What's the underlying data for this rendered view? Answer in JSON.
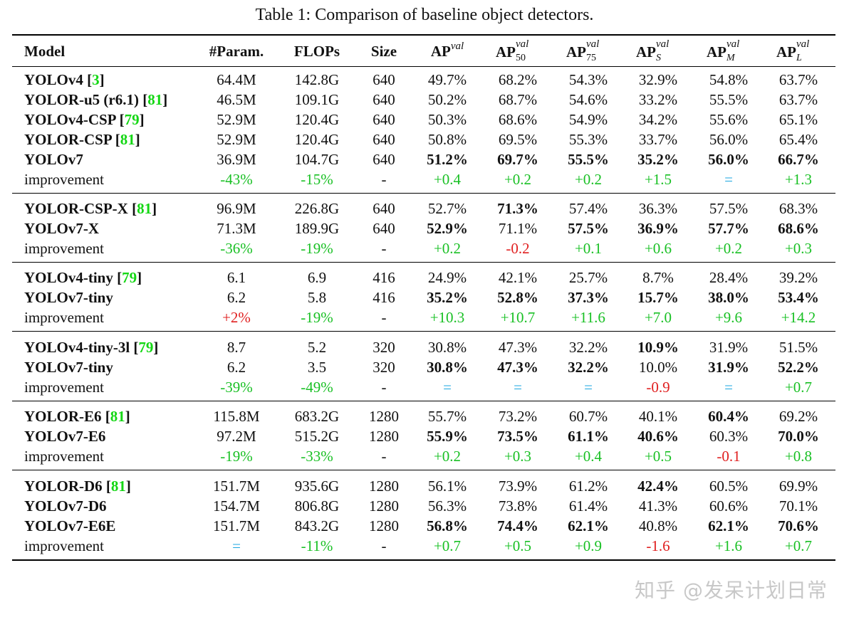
{
  "caption": "Table 1: Comparison of baseline object detectors.",
  "headers": {
    "model": "Model",
    "params": "#Param.",
    "flops": "FLOPs",
    "size": "Size",
    "ap": "AP",
    "ap_sup": "val",
    "ap50_sub": "50",
    "ap75_sub": "75",
    "aps_sub": "S",
    "apm_sub": "M",
    "apl_sub": "L"
  },
  "groups": [
    {
      "rows": [
        {
          "model": "YOLOv4",
          "ref": "3",
          "cells": [
            [
              "64.4M",
              ""
            ],
            [
              "142.8G",
              ""
            ],
            [
              "640",
              ""
            ],
            [
              "49.7%",
              ""
            ],
            [
              "68.2%",
              ""
            ],
            [
              "54.3%",
              ""
            ],
            [
              "32.9%",
              ""
            ],
            [
              "54.8%",
              ""
            ],
            [
              "63.7%",
              ""
            ]
          ]
        },
        {
          "model": "YOLOR-u5 (r6.1)",
          "ref": "81",
          "cells": [
            [
              "46.5M",
              ""
            ],
            [
              "109.1G",
              ""
            ],
            [
              "640",
              ""
            ],
            [
              "50.2%",
              ""
            ],
            [
              "68.7%",
              ""
            ],
            [
              "54.6%",
              ""
            ],
            [
              "33.2%",
              ""
            ],
            [
              "55.5%",
              ""
            ],
            [
              "63.7%",
              ""
            ]
          ]
        },
        {
          "model": "YOLOv4-CSP",
          "ref": "79",
          "cells": [
            [
              "52.9M",
              ""
            ],
            [
              "120.4G",
              ""
            ],
            [
              "640",
              ""
            ],
            [
              "50.3%",
              ""
            ],
            [
              "68.6%",
              ""
            ],
            [
              "54.9%",
              ""
            ],
            [
              "34.2%",
              ""
            ],
            [
              "55.6%",
              ""
            ],
            [
              "65.1%",
              ""
            ]
          ]
        },
        {
          "model": "YOLOR-CSP",
          "ref": "81",
          "cells": [
            [
              "52.9M",
              ""
            ],
            [
              "120.4G",
              ""
            ],
            [
              "640",
              ""
            ],
            [
              "50.8%",
              ""
            ],
            [
              "69.5%",
              ""
            ],
            [
              "55.3%",
              ""
            ],
            [
              "33.7%",
              ""
            ],
            [
              "56.0%",
              ""
            ],
            [
              "65.4%",
              ""
            ]
          ]
        },
        {
          "model": "YOLOv7",
          "ref": "",
          "cells": [
            [
              "36.9M",
              ""
            ],
            [
              "104.7G",
              ""
            ],
            [
              "640",
              ""
            ],
            [
              "51.2%",
              "b"
            ],
            [
              "69.7%",
              "b"
            ],
            [
              "55.5%",
              "b"
            ],
            [
              "35.2%",
              "b"
            ],
            [
              "56.0%",
              "b"
            ],
            [
              "66.7%",
              "b"
            ]
          ]
        },
        {
          "model": "improvement",
          "plain": true,
          "cells": [
            [
              "-43%",
              "green"
            ],
            [
              "-15%",
              "green"
            ],
            [
              "-",
              ""
            ],
            [
              "+0.4",
              "green"
            ],
            [
              "+0.2",
              "green"
            ],
            [
              "+0.2",
              "green"
            ],
            [
              "+1.5",
              "green"
            ],
            [
              "=",
              "cyan"
            ],
            [
              "+1.3",
              "green"
            ]
          ]
        }
      ]
    },
    {
      "rows": [
        {
          "model": "YOLOR-CSP-X",
          "ref": "81",
          "cells": [
            [
              "96.9M",
              ""
            ],
            [
              "226.8G",
              ""
            ],
            [
              "640",
              ""
            ],
            [
              "52.7%",
              ""
            ],
            [
              "71.3%",
              "b"
            ],
            [
              "57.4%",
              ""
            ],
            [
              "36.3%",
              ""
            ],
            [
              "57.5%",
              ""
            ],
            [
              "68.3%",
              ""
            ]
          ]
        },
        {
          "model": "YOLOv7-X",
          "ref": "",
          "cells": [
            [
              "71.3M",
              ""
            ],
            [
              "189.9G",
              ""
            ],
            [
              "640",
              ""
            ],
            [
              "52.9%",
              "b"
            ],
            [
              "71.1%",
              ""
            ],
            [
              "57.5%",
              "b"
            ],
            [
              "36.9%",
              "b"
            ],
            [
              "57.7%",
              "b"
            ],
            [
              "68.6%",
              "b"
            ]
          ]
        },
        {
          "model": "improvement",
          "plain": true,
          "cells": [
            [
              "-36%",
              "green"
            ],
            [
              "-19%",
              "green"
            ],
            [
              "-",
              ""
            ],
            [
              "+0.2",
              "green"
            ],
            [
              "-0.2",
              "red"
            ],
            [
              "+0.1",
              "green"
            ],
            [
              "+0.6",
              "green"
            ],
            [
              "+0.2",
              "green"
            ],
            [
              "+0.3",
              "green"
            ]
          ]
        }
      ]
    },
    {
      "rows": [
        {
          "model": "YOLOv4-tiny",
          "ref": "79",
          "cells": [
            [
              "6.1",
              ""
            ],
            [
              "6.9",
              ""
            ],
            [
              "416",
              ""
            ],
            [
              "24.9%",
              ""
            ],
            [
              "42.1%",
              ""
            ],
            [
              "25.7%",
              ""
            ],
            [
              "8.7%",
              ""
            ],
            [
              "28.4%",
              ""
            ],
            [
              "39.2%",
              ""
            ]
          ]
        },
        {
          "model": "YOLOv7-tiny",
          "ref": "",
          "cells": [
            [
              "6.2",
              ""
            ],
            [
              "5.8",
              ""
            ],
            [
              "416",
              ""
            ],
            [
              "35.2%",
              "b"
            ],
            [
              "52.8%",
              "b"
            ],
            [
              "37.3%",
              "b"
            ],
            [
              "15.7%",
              "b"
            ],
            [
              "38.0%",
              "b"
            ],
            [
              "53.4%",
              "b"
            ]
          ]
        },
        {
          "model": "improvement",
          "plain": true,
          "cells": [
            [
              "+2%",
              "red"
            ],
            [
              "-19%",
              "green"
            ],
            [
              "-",
              ""
            ],
            [
              "+10.3",
              "green"
            ],
            [
              "+10.7",
              "green"
            ],
            [
              "+11.6",
              "green"
            ],
            [
              "+7.0",
              "green"
            ],
            [
              "+9.6",
              "green"
            ],
            [
              "+14.2",
              "green"
            ]
          ]
        }
      ]
    },
    {
      "rows": [
        {
          "model": "YOLOv4-tiny-3l",
          "ref": "79",
          "cells": [
            [
              "8.7",
              ""
            ],
            [
              "5.2",
              ""
            ],
            [
              "320",
              ""
            ],
            [
              "30.8%",
              ""
            ],
            [
              "47.3%",
              ""
            ],
            [
              "32.2%",
              ""
            ],
            [
              "10.9%",
              "b"
            ],
            [
              "31.9%",
              ""
            ],
            [
              "51.5%",
              ""
            ]
          ]
        },
        {
          "model": "YOLOv7-tiny",
          "ref": "",
          "cells": [
            [
              "6.2",
              ""
            ],
            [
              "3.5",
              ""
            ],
            [
              "320",
              ""
            ],
            [
              "30.8%",
              "b"
            ],
            [
              "47.3%",
              "b"
            ],
            [
              "32.2%",
              "b"
            ],
            [
              "10.0%",
              ""
            ],
            [
              "31.9%",
              "b"
            ],
            [
              "52.2%",
              "b"
            ]
          ]
        },
        {
          "model": "improvement",
          "plain": true,
          "cells": [
            [
              "-39%",
              "green"
            ],
            [
              "-49%",
              "green"
            ],
            [
              "-",
              ""
            ],
            [
              "=",
              "cyan"
            ],
            [
              "=",
              "cyan"
            ],
            [
              "=",
              "cyan"
            ],
            [
              "-0.9",
              "red"
            ],
            [
              "=",
              "cyan"
            ],
            [
              "+0.7",
              "green"
            ]
          ]
        }
      ]
    },
    {
      "rows": [
        {
          "model": "YOLOR-E6",
          "ref": "81",
          "cells": [
            [
              "115.8M",
              ""
            ],
            [
              "683.2G",
              ""
            ],
            [
              "1280",
              ""
            ],
            [
              "55.7%",
              ""
            ],
            [
              "73.2%",
              ""
            ],
            [
              "60.7%",
              ""
            ],
            [
              "40.1%",
              ""
            ],
            [
              "60.4%",
              "b"
            ],
            [
              "69.2%",
              ""
            ]
          ]
        },
        {
          "model": "YOLOv7-E6",
          "ref": "",
          "cells": [
            [
              "97.2M",
              ""
            ],
            [
              "515.2G",
              ""
            ],
            [
              "1280",
              ""
            ],
            [
              "55.9%",
              "b"
            ],
            [
              "73.5%",
              "b"
            ],
            [
              "61.1%",
              "b"
            ],
            [
              "40.6%",
              "b"
            ],
            [
              "60.3%",
              ""
            ],
            [
              "70.0%",
              "b"
            ]
          ]
        },
        {
          "model": "improvement",
          "plain": true,
          "cells": [
            [
              "-19%",
              "green"
            ],
            [
              "-33%",
              "green"
            ],
            [
              "-",
              ""
            ],
            [
              "+0.2",
              "green"
            ],
            [
              "+0.3",
              "green"
            ],
            [
              "+0.4",
              "green"
            ],
            [
              "+0.5",
              "green"
            ],
            [
              "-0.1",
              "red"
            ],
            [
              "+0.8",
              "green"
            ]
          ]
        }
      ]
    },
    {
      "rows": [
        {
          "model": "YOLOR-D6",
          "ref": "81",
          "cells": [
            [
              "151.7M",
              ""
            ],
            [
              "935.6G",
              ""
            ],
            [
              "1280",
              ""
            ],
            [
              "56.1%",
              ""
            ],
            [
              "73.9%",
              ""
            ],
            [
              "61.2%",
              ""
            ],
            [
              "42.4%",
              "b"
            ],
            [
              "60.5%",
              ""
            ],
            [
              "69.9%",
              ""
            ]
          ]
        },
        {
          "model": "YOLOv7-D6",
          "ref": "",
          "cells": [
            [
              "154.7M",
              ""
            ],
            [
              "806.8G",
              ""
            ],
            [
              "1280",
              ""
            ],
            [
              "56.3%",
              ""
            ],
            [
              "73.8%",
              ""
            ],
            [
              "61.4%",
              ""
            ],
            [
              "41.3%",
              ""
            ],
            [
              "60.6%",
              ""
            ],
            [
              "70.1%",
              ""
            ]
          ]
        },
        {
          "model": "YOLOv7-E6E",
          "ref": "",
          "cells": [
            [
              "151.7M",
              ""
            ],
            [
              "843.2G",
              ""
            ],
            [
              "1280",
              ""
            ],
            [
              "56.8%",
              "b"
            ],
            [
              "74.4%",
              "b"
            ],
            [
              "62.1%",
              "b"
            ],
            [
              "40.8%",
              ""
            ],
            [
              "62.1%",
              "b"
            ],
            [
              "70.6%",
              "b"
            ]
          ]
        },
        {
          "model": "improvement",
          "plain": true,
          "cells": [
            [
              "=",
              "cyan"
            ],
            [
              "-11%",
              "green"
            ],
            [
              "-",
              ""
            ],
            [
              "+0.7",
              "green"
            ],
            [
              "+0.5",
              "green"
            ],
            [
              "+0.9",
              "green"
            ],
            [
              "-1.6",
              "red"
            ],
            [
              "+1.6",
              "green"
            ],
            [
              "+0.7",
              "green"
            ]
          ]
        }
      ]
    }
  ],
  "watermark": "知乎 @发呆计划日常",
  "colors": {
    "green": "#19c024",
    "red": "#e01f1f",
    "cyan": "#1aa6e0",
    "ref": "#14d714"
  }
}
